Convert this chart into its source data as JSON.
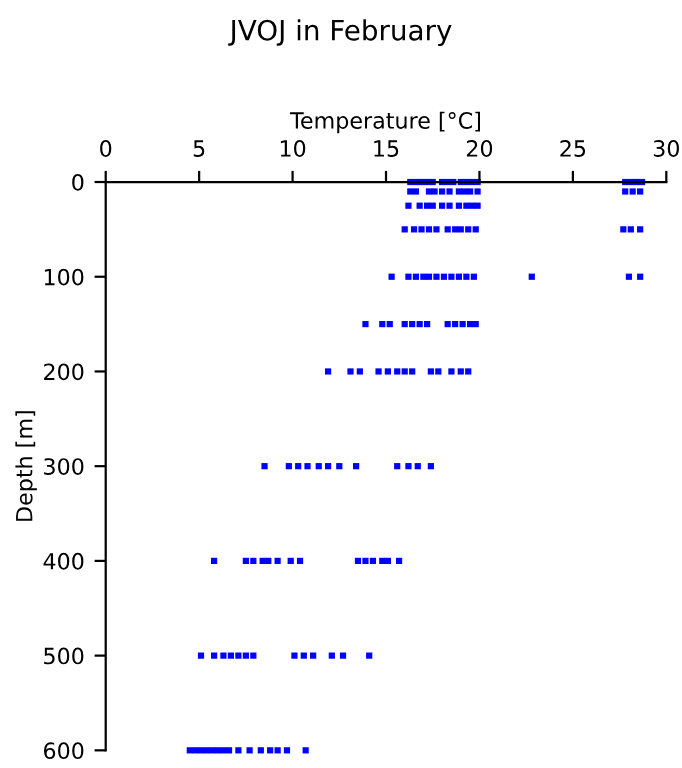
{
  "chart_data": {
    "type": "scatter",
    "title": "JVOJ in February",
    "xlabel": "Temperature [°C]",
    "ylabel": "Depth [m]",
    "xlim": [
      0,
      30
    ],
    "xticks": [
      0,
      5,
      10,
      15,
      20,
      25,
      30
    ],
    "ylim": [
      600,
      0
    ],
    "yticks": [
      0,
      100,
      200,
      300,
      400,
      500,
      600
    ],
    "grid": false,
    "legend": false,
    "marker": "square",
    "series": [
      {
        "color": "#0000ff",
        "x": [
          16.3,
          16.6,
          16.9,
          17.2,
          17.5,
          18.0,
          18.3,
          18.6,
          19.0,
          19.3,
          19.6,
          19.9,
          27.8,
          28.1,
          28.4,
          28.7
        ],
        "values": [
          0,
          0,
          0,
          0,
          0,
          0,
          0,
          0,
          0,
          0,
          0,
          0,
          0,
          0,
          0,
          0
        ]
      },
      {
        "color": "#0000ff",
        "x": [
          16.3,
          16.6,
          17.3,
          17.6,
          18.0,
          18.4,
          18.9,
          19.2,
          19.5,
          19.9,
          27.8,
          28.2,
          28.6
        ],
        "values": [
          10,
          10,
          10,
          10,
          10,
          10,
          10,
          10,
          10,
          10,
          10,
          10,
          10
        ]
      },
      {
        "color": "#0000ff",
        "x": [
          16.2,
          16.8,
          17.2,
          17.5,
          18.0,
          18.4,
          18.9,
          19.3,
          19.6,
          19.9
        ],
        "values": [
          25,
          25,
          25,
          25,
          25,
          25,
          25,
          25,
          25,
          25
        ]
      },
      {
        "color": "#0000ff",
        "x": [
          16.0,
          16.5,
          16.9,
          17.3,
          17.7,
          18.3,
          18.7,
          19.0,
          19.4,
          19.8,
          27.7,
          28.1,
          28.6
        ],
        "values": [
          50,
          50,
          50,
          50,
          50,
          50,
          50,
          50,
          50,
          50,
          50,
          50,
          50
        ]
      },
      {
        "color": "#0000ff",
        "x": [
          15.3,
          16.2,
          16.6,
          17.0,
          17.3,
          17.7,
          18.1,
          18.5,
          18.9,
          19.3,
          19.7,
          22.8,
          28.0,
          28.6
        ],
        "values": [
          100,
          100,
          100,
          100,
          100,
          100,
          100,
          100,
          100,
          100,
          100,
          100,
          100,
          100
        ]
      },
      {
        "color": "#0000ff",
        "x": [
          13.9,
          14.8,
          15.2,
          16.0,
          16.4,
          16.8,
          17.2,
          18.3,
          18.7,
          19.1,
          19.5,
          19.8
        ],
        "values": [
          150,
          150,
          150,
          150,
          150,
          150,
          150,
          150,
          150,
          150,
          150,
          150
        ]
      },
      {
        "color": "#0000ff",
        "x": [
          11.9,
          13.1,
          13.6,
          14.6,
          15.1,
          15.6,
          16.0,
          16.4,
          17.4,
          17.8,
          18.5,
          19.0,
          19.4
        ],
        "values": [
          200,
          200,
          200,
          200,
          200,
          200,
          200,
          200,
          200,
          200,
          200,
          200,
          200
        ]
      },
      {
        "color": "#0000ff",
        "x": [
          8.5,
          9.8,
          10.3,
          10.8,
          11.4,
          11.9,
          12.5,
          13.4,
          15.6,
          16.2,
          16.7,
          17.4
        ],
        "values": [
          300,
          300,
          300,
          300,
          300,
          300,
          300,
          300,
          300,
          300,
          300,
          300
        ]
      },
      {
        "color": "#0000ff",
        "x": [
          5.8,
          7.5,
          7.9,
          8.4,
          8.7,
          9.2,
          9.9,
          10.4,
          13.5,
          13.9,
          14.3,
          14.8,
          15.1,
          15.7
        ],
        "values": [
          400,
          400,
          400,
          400,
          400,
          400,
          400,
          400,
          400,
          400,
          400,
          400,
          400,
          400
        ]
      },
      {
        "color": "#0000ff",
        "x": [
          5.1,
          5.8,
          6.3,
          6.7,
          7.1,
          7.5,
          7.9,
          10.1,
          10.6,
          11.1,
          12.1,
          12.7,
          14.1
        ],
        "values": [
          500,
          500,
          500,
          500,
          500,
          500,
          500,
          500,
          500,
          500,
          500,
          500,
          500
        ]
      },
      {
        "color": "#0000ff",
        "x": [
          4.5,
          4.8,
          5.1,
          5.4,
          5.7,
          6.0,
          6.3,
          6.6,
          7.1,
          7.7,
          8.3,
          8.8,
          9.2,
          9.7,
          10.7
        ],
        "values": [
          600,
          600,
          600,
          600,
          600,
          600,
          600,
          600,
          600,
          600,
          600,
          600,
          600,
          600,
          600
        ]
      }
    ]
  }
}
